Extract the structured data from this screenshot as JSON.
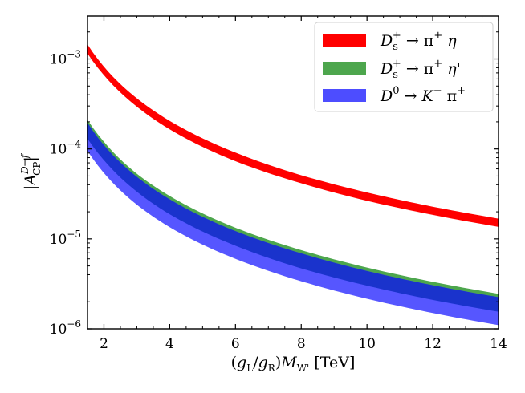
{
  "chart_data": {
    "type": "area",
    "title": "",
    "xlabel": "(gL/gR) MW' [TeV]",
    "ylabel": "|A_CP^(D→f)|",
    "xlim": [
      1.5,
      14
    ],
    "ylim": [
      1e-06,
      0.003
    ],
    "yscale": "log",
    "grid": false,
    "legend_position": "top-right",
    "x_ticks": [
      2,
      4,
      6,
      8,
      10,
      12,
      14
    ],
    "x_tick_labels": [
      "2",
      "4",
      "6",
      "8",
      "10",
      "12",
      "14"
    ],
    "y_ticks": [
      1e-06,
      1e-05,
      0.0001,
      0.001
    ],
    "y_tick_labels": [
      {
        "base": "10",
        "exp": "−6"
      },
      {
        "base": "10",
        "exp": "−5"
      },
      {
        "base": "10",
        "exp": "−4"
      },
      {
        "base": "10",
        "exp": "−3"
      }
    ],
    "x": [
      1.5,
      2,
      3,
      4,
      6,
      8,
      10,
      12,
      14
    ],
    "series": [
      {
        "name": "Ds+ → π+ η",
        "legend_text": "D_s^+ → π^+ η",
        "color": "#ff0000",
        "lower": [
          0.00115,
          0.00066,
          0.000295,
          0.000165,
          7.3e-05,
          4.15e-05,
          2.65e-05,
          1.85e-05,
          1.36e-05
        ],
        "upper": [
          0.00145,
          0.00082,
          0.000365,
          0.000205,
          9.1e-05,
          5.1e-05,
          3.28e-05,
          2.28e-05,
          1.68e-05
        ]
      },
      {
        "name": "Ds+ → π+ η'",
        "legend_text": "D_s^+ → π^+ η'",
        "color": "#4da64d",
        "lower": [
          0.00013,
          7.5e-05,
          3.35e-05,
          1.88e-05,
          8.4e-06,
          4.7e-06,
          3.02e-06,
          2.1e-06,
          1.55e-06
        ],
        "upper": [
          0.00021,
          0.00012,
          5.3e-05,
          3e-05,
          1.33e-05,
          7.5e-06,
          4.8e-06,
          3.33e-06,
          2.45e-06
        ]
      },
      {
        "name": "D0 → K− π+",
        "legend_text": "D^0 → K^− π^+",
        "color": "#4d4dff",
        "lower": [
          9.5e-05,
          5.4e-05,
          2.4e-05,
          1.35e-05,
          6e-06,
          3.38e-06,
          2.16e-06,
          1.5e-06,
          1.1e-06
        ],
        "upper": [
          0.000195,
          0.00011,
          4.9e-05,
          2.75e-05,
          1.22e-05,
          6.9e-06,
          4.4e-06,
          3.05e-06,
          2.25e-06
        ]
      }
    ]
  }
}
